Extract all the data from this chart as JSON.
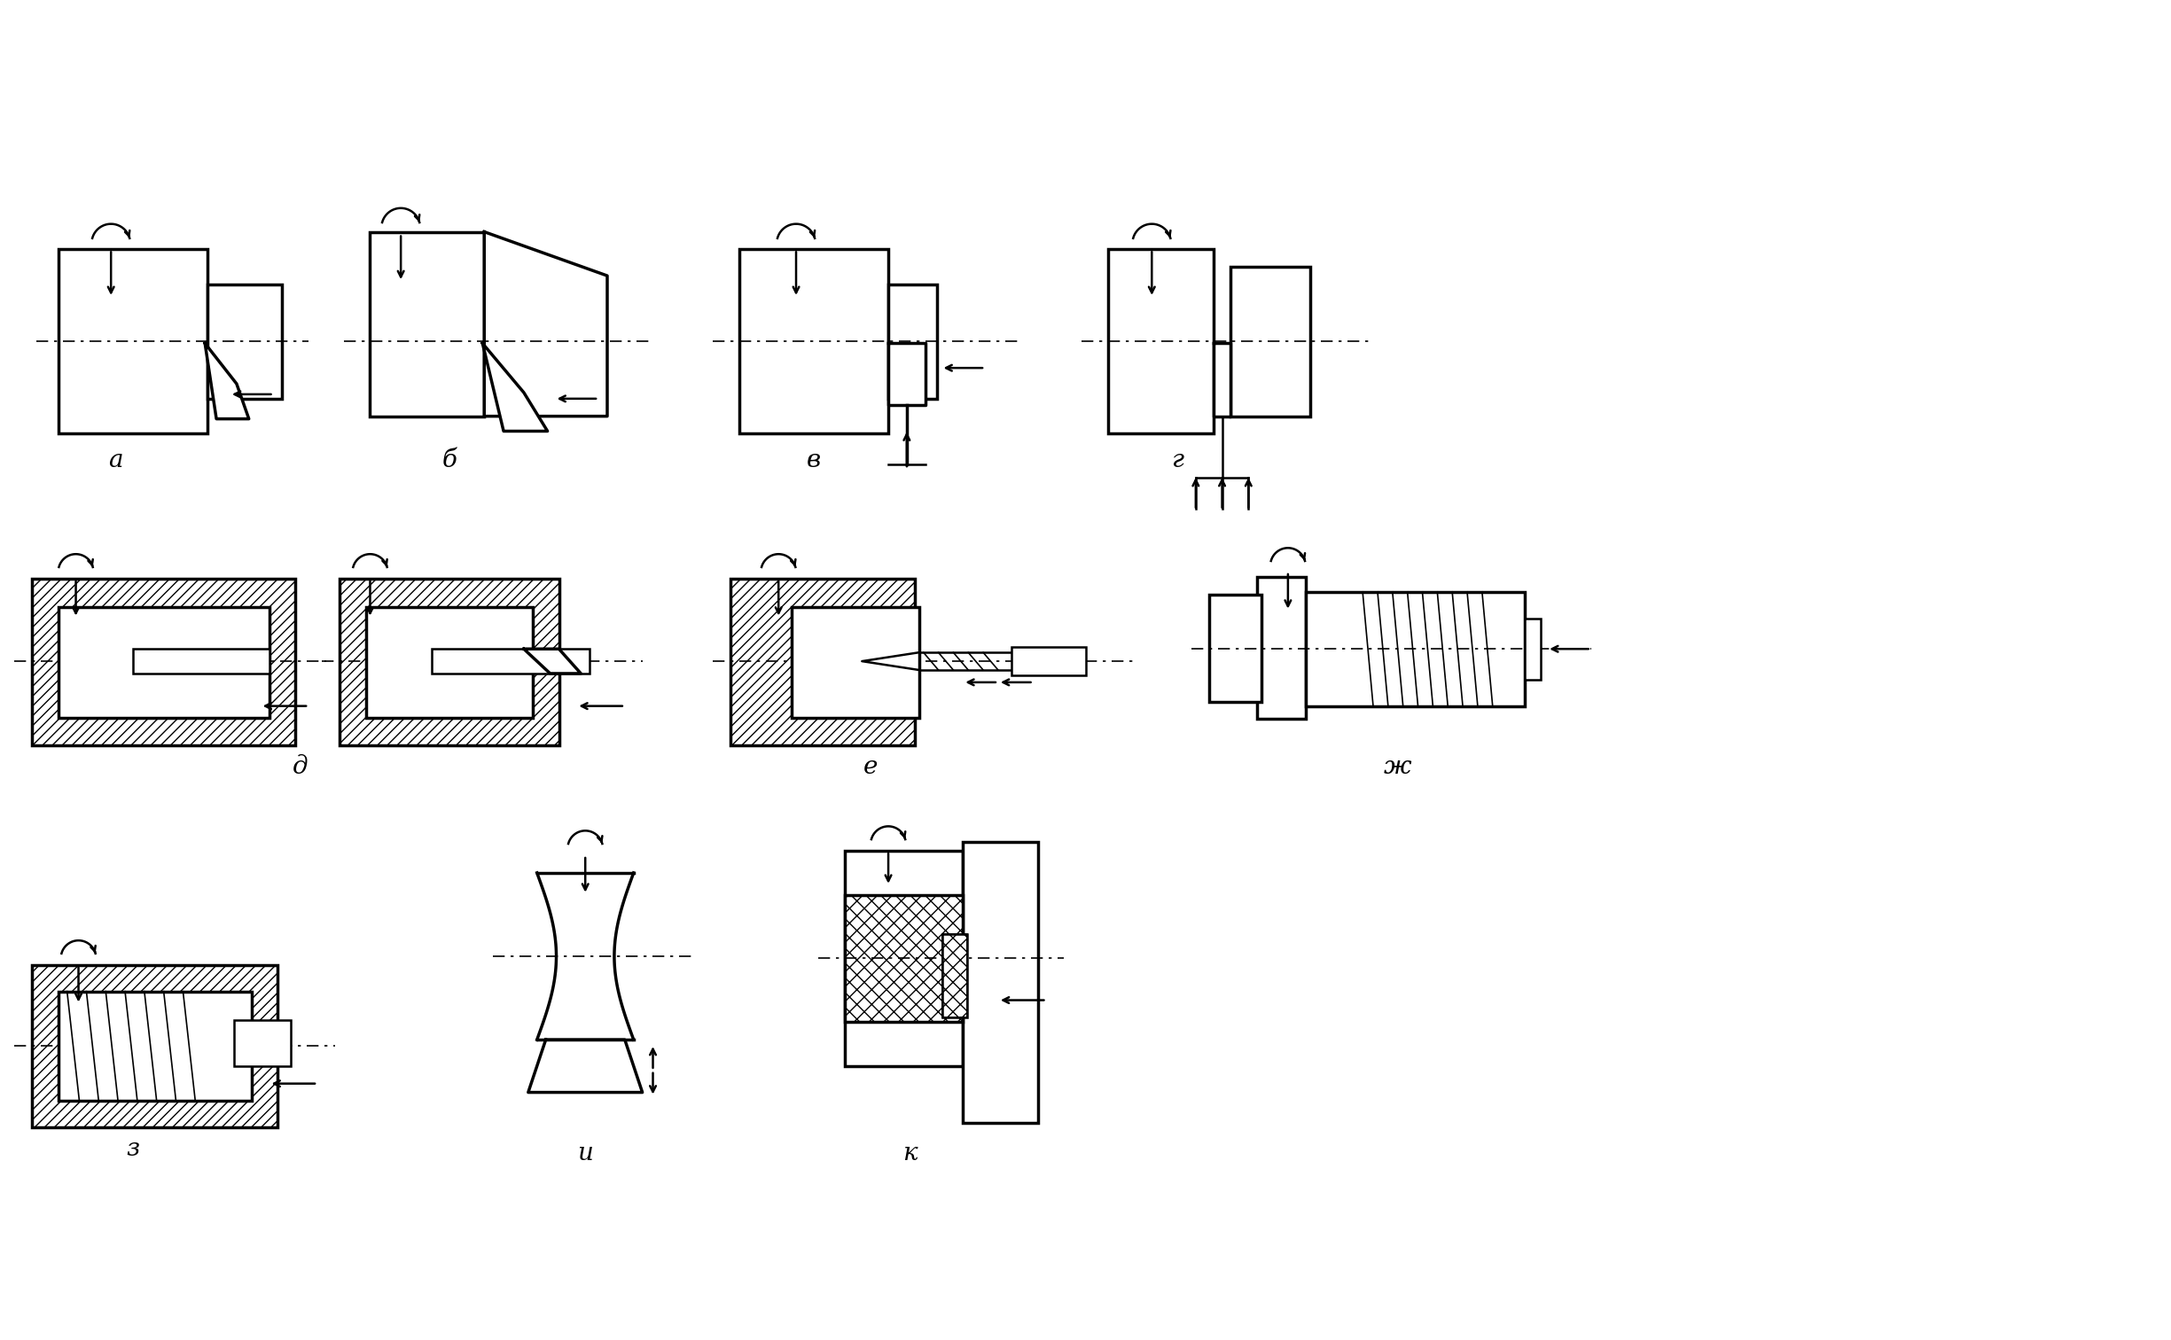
{
  "bg_color": "#ffffff",
  "line_color": "#000000",
  "labels": [
    "а",
    "б",
    "в",
    "г",
    "д",
    "е",
    "ж",
    "з",
    "и",
    "к"
  ],
  "label_fontsize": 20,
  "figsize": [
    24.49,
    15.12
  ],
  "dpi": 100,
  "lw_thick": 2.5,
  "lw_med": 1.8,
  "lw_thin": 1.2
}
